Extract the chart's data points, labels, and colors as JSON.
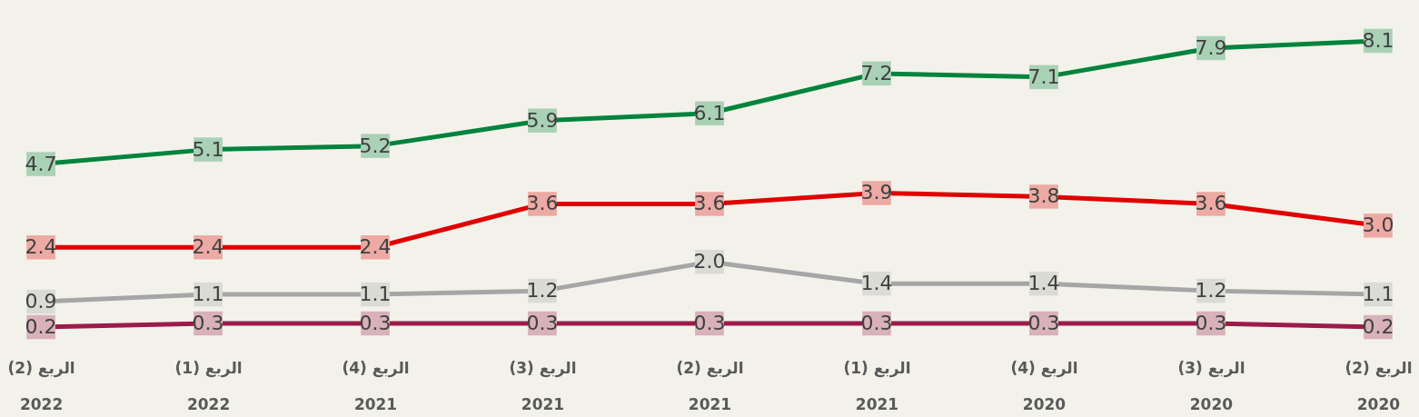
{
  "chart_data": {
    "type": "line",
    "categories": [
      "الربع (2)\n2022",
      "الربع (1)\n2022",
      "الربع (4)\n2021",
      "الربع (3)\n2021",
      "الربع (2)\n2021",
      "الربع (1)\n2021",
      "الربع (4)\n2020",
      "الربع (3)\n2020",
      "الربع (2)\n2020"
    ],
    "series": [
      {
        "color": "#00843d",
        "values": [
          4.7,
          5.1,
          5.2,
          5.9,
          6.1,
          7.2,
          7.1,
          7.9,
          8.1
        ],
        "value_labels": [
          "4.7",
          "5.1",
          "5.2",
          "5.9",
          "6.1",
          "7.2",
          "7.1",
          "7.9",
          "8.1"
        ]
      },
      {
        "color": "#e00000",
        "values": [
          2.4,
          2.4,
          2.4,
          3.6,
          3.6,
          3.9,
          3.8,
          3.6,
          3.0
        ],
        "value_labels": [
          "2.4",
          "2.4",
          "2.4",
          "3.6",
          "3.6",
          "3.9",
          "3.8",
          "3.6",
          "3.0"
        ]
      },
      {
        "color": "#a6a6a6",
        "values": [
          0.9,
          1.1,
          1.1,
          1.2,
          2.0,
          1.4,
          1.4,
          1.2,
          1.1
        ],
        "value_labels": [
          "0.9",
          "1.1",
          "1.1",
          "1.2",
          "2.0",
          "1.4",
          "1.4",
          "1.2",
          "1.1"
        ]
      },
      {
        "color": "#9b1b4b",
        "values": [
          0.2,
          0.3,
          0.3,
          0.3,
          0.3,
          0.3,
          0.3,
          0.3,
          0.2
        ],
        "value_labels": [
          "0.2",
          "0.3",
          "0.3",
          "0.3",
          "0.3",
          "0.3",
          "0.3",
          "0.3",
          "0.2"
        ]
      }
    ],
    "grid": false,
    "marker": "square",
    "line_style": "solid"
  }
}
